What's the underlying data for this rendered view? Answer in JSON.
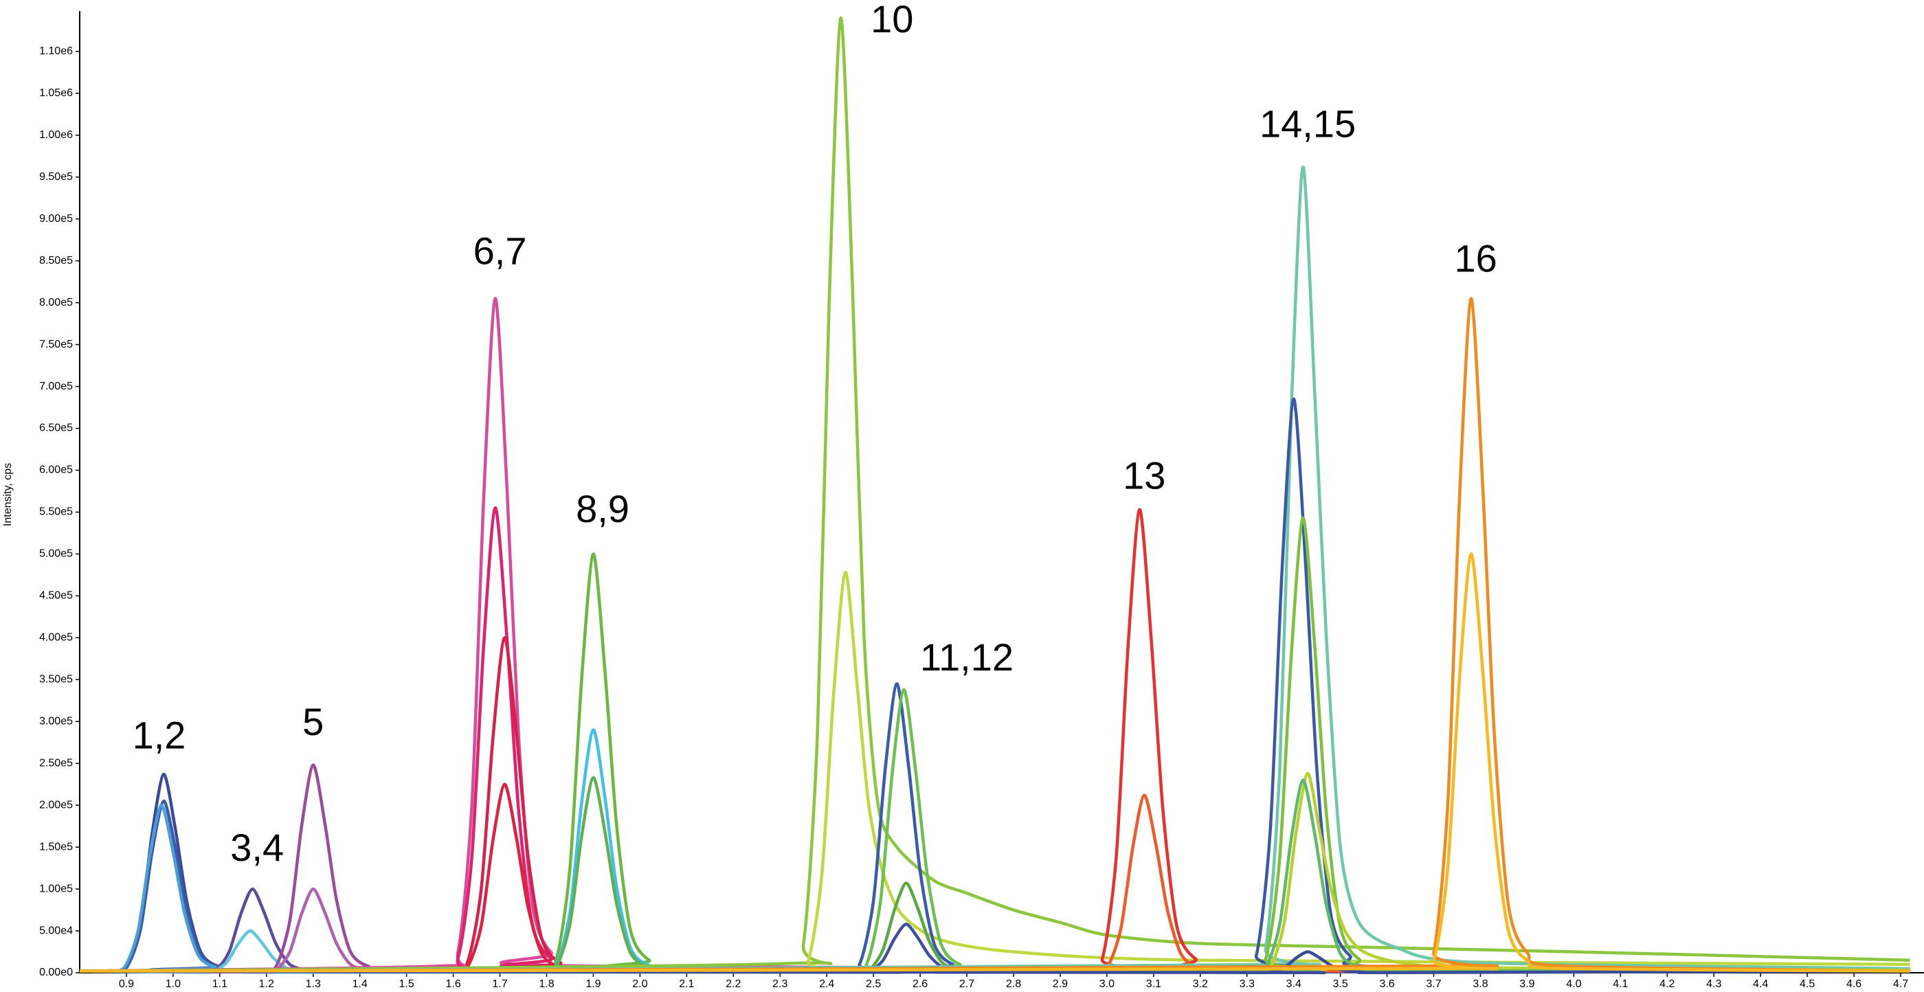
{
  "chart_data": {
    "type": "line",
    "y_label": "Intensity, cps",
    "xlim": [
      0.8,
      4.75
    ],
    "ylim": [
      0,
      1145000
    ],
    "xticks": [
      0.9,
      {
        "value": 1,
        "label": "1.0"
      },
      1.1,
      1.2,
      1.3,
      1.4,
      1.5,
      1.6,
      1.7,
      1.8,
      1.9,
      {
        "value": 2,
        "label": "2.0"
      },
      2.1,
      2.2,
      2.3,
      2.4,
      2.5,
      2.6,
      2.7,
      2.8,
      2.9,
      {
        "value": 3,
        "label": "3.0"
      },
      3.1,
      3.2,
      3.3,
      3.4,
      3.5,
      3.6,
      3.7,
      3.8,
      3.9,
      {
        "value": 4,
        "label": "4.0"
      },
      4.1,
      4.2,
      4.3,
      4.4,
      4.5,
      4.6,
      4.7
    ],
    "yticks": [
      {
        "value": 0,
        "label": "0.00e0"
      },
      {
        "value": 50000,
        "label": "5.00e4"
      },
      {
        "value": 100000,
        "label": "1.00e5"
      },
      {
        "value": 150000,
        "label": "1.50e5"
      },
      {
        "value": 200000,
        "label": "2.00e5"
      },
      {
        "value": 250000,
        "label": "2.50e5"
      },
      {
        "value": 300000,
        "label": "3.00e5"
      },
      {
        "value": 350000,
        "label": "3.50e5"
      },
      {
        "value": 400000,
        "label": "4.00e5"
      },
      {
        "value": 450000,
        "label": "4.50e5"
      },
      {
        "value": 500000,
        "label": "5.00e5"
      },
      {
        "value": 550000,
        "label": "5.50e5"
      },
      {
        "value": 600000,
        "label": "6.00e5"
      },
      {
        "value": 650000,
        "label": "6.50e5"
      },
      {
        "value": 700000,
        "label": "7.00e5"
      },
      {
        "value": 750000,
        "label": "7.50e5"
      },
      {
        "value": 800000,
        "label": "8.00e5"
      },
      {
        "value": 850000,
        "label": "8.50e5"
      },
      {
        "value": 900000,
        "label": "9.00e5"
      },
      {
        "value": 950000,
        "label": "9.50e5"
      },
      {
        "value": 1000000,
        "label": "1.00e6"
      },
      {
        "value": 1050000,
        "label": "1.05e6"
      },
      {
        "value": 1100000,
        "label": "1.10e6"
      }
    ],
    "annotations": [
      "1,2",
      "3,4",
      "5",
      "6,7",
      "8,9",
      "10",
      "11,12",
      "13",
      "14,15",
      "16"
    ],
    "series": [
      {
        "color": "#3a4a9a",
        "x": [
          0.8,
          0.86,
          0.9,
          0.93,
          0.955,
          0.98,
          1.005,
          1.03,
          1.06,
          1.1,
          1.18,
          4.72
        ],
        "values": [
          2000,
          2400,
          7100,
          59000,
          166000,
          237000,
          171000,
          83000,
          24000,
          7100,
          2400,
          2000
        ]
      },
      {
        "color": "#3d5aa8",
        "x": [
          0.8,
          0.86,
          0.9,
          0.93,
          0.955,
          0.98,
          1.005,
          1.03,
          1.06,
          1.1,
          1.18,
          4.72
        ],
        "values": [
          2000,
          2100,
          6200,
          51000,
          144000,
          205000,
          148000,
          72000,
          20500,
          6200,
          2100,
          2000
        ]
      },
      {
        "color": "#4a9fd8",
        "x": [
          0.8,
          0.855,
          0.895,
          0.925,
          0.95,
          0.975,
          1.0,
          1.025,
          1.055,
          1.095,
          1.175,
          4.72
        ],
        "values": [
          2000,
          2000,
          6000,
          50000,
          140000,
          200000,
          144000,
          70000,
          20000,
          6000,
          2000,
          2000
        ]
      },
      {
        "color": "#5b4aa0",
        "x": [
          0.8,
          1.05,
          1.09,
          1.12,
          1.145,
          1.17,
          1.195,
          1.22,
          1.25,
          1.29,
          1.37,
          4.72
        ],
        "values": [
          2000,
          1000,
          3000,
          25000,
          70000,
          100000,
          72000,
          35000,
          10000,
          3000,
          1000,
          2000
        ]
      },
      {
        "color": "#5cc8e0",
        "x": [
          0.8,
          1.045,
          1.085,
          1.115,
          1.14,
          1.165,
          1.19,
          1.215,
          1.245,
          1.285,
          1.365,
          4.72
        ],
        "values": [
          2000,
          500,
          1500,
          12500,
          35000,
          50000,
          36000,
          17500,
          5000,
          1500,
          500,
          2000
        ]
      },
      {
        "color": "#9b4a9e",
        "x": [
          0.8,
          1.18,
          1.22,
          1.25,
          1.275,
          1.3,
          1.325,
          1.35,
          1.38,
          1.42,
          1.5,
          4.72
        ],
        "values": [
          2000,
          2500,
          7400,
          62000,
          174000,
          248000,
          179000,
          87000,
          25000,
          7400,
          2500,
          2000
        ]
      },
      {
        "color": "#b060b0",
        "x": [
          0.8,
          1.18,
          1.22,
          1.25,
          1.275,
          1.3,
          1.325,
          1.35,
          1.38,
          1.42,
          1.5,
          4.72
        ],
        "values": [
          2000,
          1000,
          3000,
          25000,
          70000,
          100000,
          72000,
          35000,
          10000,
          3000,
          1000,
          2000
        ]
      },
      {
        "color": "#d84a9e",
        "x": [
          0.8,
          1.57,
          1.61,
          1.64,
          1.665,
          1.69,
          1.715,
          1.74,
          1.77,
          1.81,
          1.89,
          4.72
        ],
        "values": [
          2000,
          8000,
          24000,
          201000,
          564000,
          805000,
          580000,
          282000,
          80000,
          24000,
          8000,
          2000
        ]
      },
      {
        "color": "#e0206a",
        "x": [
          0.8,
          1.57,
          1.61,
          1.64,
          1.665,
          1.69,
          1.715,
          1.74,
          1.77,
          1.81,
          1.89,
          4.72
        ],
        "values": [
          2000,
          5500,
          17000,
          139000,
          389000,
          555000,
          400000,
          194000,
          56000,
          17000,
          5500,
          2000
        ]
      },
      {
        "color": "#d8204a",
        "x": [
          0.8,
          1.59,
          1.63,
          1.66,
          1.685,
          1.71,
          1.735,
          1.76,
          1.79,
          1.83,
          1.91,
          4.72
        ],
        "values": [
          2000,
          4000,
          12000,
          100000,
          280000,
          400000,
          288000,
          140000,
          40000,
          12000,
          4000,
          2000
        ]
      },
      {
        "color": "#e02040",
        "x": [
          0.8,
          1.59,
          1.63,
          1.66,
          1.685,
          1.71,
          1.735,
          1.76,
          1.79,
          1.83,
          1.91,
          4.72
        ],
        "values": [
          2000,
          2200,
          6800,
          56000,
          158000,
          225000,
          162000,
          79000,
          22500,
          6800,
          2200,
          2000
        ]
      },
      {
        "color": "#6ab840",
        "x": [
          0.8,
          1.78,
          1.82,
          1.85,
          1.875,
          1.9,
          1.925,
          1.95,
          1.98,
          2.02,
          2.1,
          4.72
        ],
        "values": [
          2000,
          5000,
          15000,
          125000,
          350000,
          500000,
          360000,
          175000,
          50000,
          15000,
          5000,
          2000
        ]
      },
      {
        "color": "#40c0e8",
        "x": [
          0.8,
          1.78,
          1.82,
          1.85,
          1.875,
          1.9,
          1.925,
          1.95,
          1.98,
          2.02,
          2.1,
          4.72
        ],
        "values": [
          2000,
          2900,
          8700,
          72500,
          203000,
          290000,
          209000,
          101500,
          29000,
          8700,
          2900,
          2000
        ]
      },
      {
        "color": "#60b050",
        "x": [
          0.8,
          1.78,
          1.82,
          1.85,
          1.875,
          1.9,
          1.925,
          1.95,
          1.98,
          2.02,
          2.1,
          4.72
        ],
        "values": [
          2000,
          2300,
          7000,
          58000,
          163000,
          233000,
          168000,
          82000,
          23300,
          7000,
          2300,
          2000
        ]
      },
      {
        "color": "#8cc63f",
        "x": [
          0.8,
          2.31,
          2.35,
          2.38,
          2.405,
          2.43,
          2.455,
          2.48,
          2.51,
          2.55,
          2.63,
          2.7,
          2.8,
          2.9,
          3.0,
          3.2,
          3.6,
          4.0,
          4.72
        ],
        "values": [
          2000,
          11000,
          34000,
          285000,
          798000,
          1140000,
          821000,
          399000,
          200000,
          150000,
          110000,
          95000,
          75000,
          60000,
          45000,
          35000,
          30000,
          25000,
          15000
        ]
      },
      {
        "color": "#c0d840",
        "x": [
          0.8,
          2.32,
          2.36,
          2.39,
          2.415,
          2.44,
          2.465,
          2.49,
          2.52,
          2.56,
          2.64,
          2.8,
          3.2,
          4.72
        ],
        "values": [
          2000,
          4800,
          14000,
          120000,
          335000,
          478000,
          344000,
          200000,
          120000,
          70000,
          40000,
          25000,
          15000,
          10000
        ]
      },
      {
        "color": "#3a5ab0",
        "x": [
          0.8,
          2.43,
          2.47,
          2.5,
          2.525,
          2.55,
          2.575,
          2.6,
          2.63,
          2.67,
          2.75,
          4.72
        ],
        "values": [
          2000,
          3500,
          10000,
          86000,
          242000,
          345000,
          248000,
          121000,
          34500,
          10000,
          3500,
          2000
        ]
      },
      {
        "color": "#6cc050",
        "x": [
          0.8,
          2.445,
          2.485,
          2.515,
          2.54,
          2.565,
          2.59,
          2.615,
          2.645,
          2.685,
          2.765,
          4.72
        ],
        "values": [
          2000,
          3400,
          10000,
          85000,
          237000,
          338000,
          243000,
          118000,
          34000,
          10000,
          3400,
          2000
        ]
      },
      {
        "color": "#5aa840",
        "x": [
          0.8,
          2.45,
          2.49,
          2.52,
          2.545,
          2.57,
          2.595,
          2.62,
          2.65,
          2.69,
          2.77,
          4.72
        ],
        "values": [
          2000,
          1000,
          3200,
          27000,
          75000,
          107000,
          77000,
          37000,
          10700,
          3200,
          1000,
          2000
        ]
      },
      {
        "color": "#4050a0",
        "x": [
          0.8,
          2.45,
          2.49,
          2.52,
          2.545,
          2.57,
          2.595,
          2.62,
          2.65,
          2.69,
          2.77,
          4.72
        ],
        "values": [
          2000,
          600,
          1700,
          14500,
          40600,
          58000,
          41800,
          20300,
          5800,
          1700,
          600,
          2000
        ]
      },
      {
        "color": "#e83030",
        "x": [
          0.8,
          2.95,
          2.99,
          3.02,
          3.045,
          3.07,
          3.095,
          3.12,
          3.15,
          3.19,
          3.27,
          4.72
        ],
        "values": [
          2000,
          5500,
          16600,
          138000,
          387000,
          553000,
          398000,
          194000,
          55000,
          16600,
          5500,
          2000
        ]
      },
      {
        "color": "#f05a28",
        "x": [
          0.8,
          2.96,
          3.0,
          3.03,
          3.055,
          3.08,
          3.105,
          3.13,
          3.16,
          3.2,
          3.28,
          4.72
        ],
        "values": [
          2000,
          2100,
          6400,
          53000,
          148000,
          212000,
          153000,
          74000,
          21200,
          6400,
          2100,
          2000
        ]
      },
      {
        "color": "#6cc8a8",
        "x": [
          0.8,
          3.3,
          3.34,
          3.37,
          3.395,
          3.42,
          3.445,
          3.47,
          3.5,
          3.54,
          3.62,
          3.8,
          4.72
        ],
        "values": [
          2000,
          9600,
          29000,
          240000,
          673000,
          962000,
          693000,
          400000,
          150000,
          60000,
          30000,
          12000,
          5000
        ]
      },
      {
        "color": "#3a58a8",
        "x": [
          0.8,
          3.28,
          3.32,
          3.35,
          3.375,
          3.4,
          3.425,
          3.45,
          3.48,
          3.52,
          3.6,
          4.72
        ],
        "values": [
          2000,
          6900,
          20600,
          171000,
          480000,
          685000,
          493000,
          240000,
          68500,
          20600,
          6900,
          2000
        ]
      },
      {
        "color": "#7cc040",
        "x": [
          0.8,
          3.3,
          3.34,
          3.37,
          3.395,
          3.42,
          3.445,
          3.47,
          3.5,
          3.54,
          3.62,
          4.72
        ],
        "values": [
          2000,
          5400,
          16300,
          136000,
          380000,
          543000,
          391000,
          190000,
          54300,
          16300,
          5400,
          2000
        ]
      },
      {
        "color": "#b8d030",
        "x": [
          0.8,
          3.31,
          3.35,
          3.38,
          3.405,
          3.43,
          3.455,
          3.48,
          3.51,
          3.55,
          3.63,
          3.8,
          4.72
        ],
        "values": [
          2000,
          2400,
          7100,
          60000,
          167000,
          238000,
          171000,
          100000,
          50000,
          25000,
          12000,
          6000,
          3000
        ]
      },
      {
        "color": "#60b868",
        "x": [
          0.8,
          3.3,
          3.34,
          3.37,
          3.395,
          3.42,
          3.445,
          3.47,
          3.5,
          3.54,
          3.62,
          4.72
        ],
        "values": [
          2000,
          2300,
          6900,
          57500,
          161000,
          230000,
          166000,
          80500,
          23000,
          6900,
          2300,
          2000
        ]
      },
      {
        "color": "#3a4a9a",
        "x": [
          0.8,
          3.31,
          3.35,
          3.38,
          3.405,
          3.43,
          3.455,
          3.48,
          3.51,
          3.55,
          3.63,
          4.72
        ],
        "values": [
          2000,
          250,
          750,
          6250,
          17500,
          25000,
          18000,
          8750,
          2500,
          750,
          250,
          2000
        ]
      },
      {
        "color": "#f08a20",
        "x": [
          0.8,
          3.66,
          3.7,
          3.73,
          3.755,
          3.78,
          3.805,
          3.83,
          3.86,
          3.9,
          3.98,
          4.72
        ],
        "values": [
          2000,
          8000,
          24000,
          201000,
          564000,
          805000,
          580000,
          282000,
          80500,
          24000,
          8000,
          2000
        ]
      },
      {
        "color": "#f8b820",
        "x": [
          0.8,
          3.66,
          3.7,
          3.73,
          3.755,
          3.78,
          3.805,
          3.83,
          3.86,
          3.9,
          3.98,
          4.72
        ],
        "values": [
          2000,
          5000,
          15000,
          125000,
          350000,
          500000,
          360000,
          175000,
          50000,
          15000,
          5000,
          2000
        ]
      }
    ]
  }
}
